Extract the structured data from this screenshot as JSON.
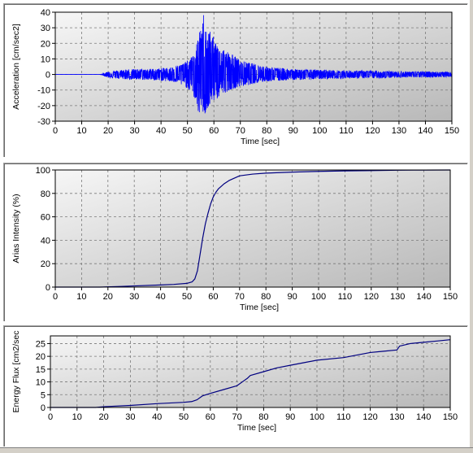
{
  "chart_data": [
    {
      "type": "line",
      "xlabel": "Time [sec]",
      "ylabel": "Acceleration [cm/sec2]",
      "xlim": [
        0,
        150
      ],
      "ylim": [
        -30,
        40
      ],
      "xticks": [
        "0",
        "10",
        "20",
        "30",
        "40",
        "50",
        "60",
        "70",
        "80",
        "90",
        "100",
        "110",
        "120",
        "130",
        "140",
        "150"
      ],
      "yticks": [
        "-30",
        "-20",
        "-10",
        "0",
        "10",
        "20",
        "30",
        "40"
      ],
      "grid": true,
      "line_color": "#0000ff",
      "series": [
        {
          "x": [
            0,
            17,
            20,
            25,
            30,
            35,
            40,
            45,
            48,
            50,
            52,
            53,
            54,
            55,
            56,
            57,
            58,
            59,
            60,
            62,
            64,
            66,
            68,
            70,
            75,
            80,
            90,
            100,
            110,
            120,
            130,
            140,
            150
          ],
          "envelope": [
            0,
            0,
            2,
            3,
            3.5,
            3.5,
            4,
            5,
            7,
            9,
            12,
            16,
            24,
            30,
            40,
            33,
            28,
            31,
            22,
            20,
            16,
            14,
            12,
            9,
            7,
            5,
            3.5,
            3,
            2.5,
            2.5,
            2,
            2,
            1.5
          ],
          "negative_envelope": [
            0,
            0,
            2,
            3,
            3.5,
            3.5,
            4,
            5,
            7,
            9,
            12,
            18,
            24,
            29,
            24,
            27,
            22,
            20,
            17,
            15,
            12,
            10,
            9,
            8,
            6,
            4.5,
            3.5,
            3,
            2.5,
            2.5,
            2,
            2,
            1.5
          ]
        }
      ]
    },
    {
      "type": "line",
      "xlabel": "Time [sec]",
      "ylabel": "Arias Intensity (%)",
      "xlim": [
        0,
        150
      ],
      "ylim": [
        0,
        100
      ],
      "xticks": [
        "0",
        "10",
        "20",
        "30",
        "40",
        "50",
        "60",
        "70",
        "80",
        "90",
        "100",
        "110",
        "120",
        "130",
        "140",
        "150"
      ],
      "yticks": [
        "0",
        "20",
        "40",
        "60",
        "80",
        "100"
      ],
      "grid": true,
      "line_color": "#000080",
      "series": [
        {
          "x": [
            0,
            17,
            25,
            30,
            40,
            45,
            50,
            52,
            53,
            54,
            55,
            56,
            57,
            58,
            59,
            60,
            61,
            62,
            64,
            66,
            68,
            70,
            75,
            80,
            90,
            100,
            110,
            120,
            130,
            140,
            150
          ],
          "y": [
            0,
            0,
            0.5,
            1,
            1.8,
            2.3,
            3.2,
            4.5,
            7,
            14,
            28,
            42,
            54,
            63,
            71,
            77,
            81,
            84,
            88,
            91,
            93,
            95,
            96.5,
            97.3,
            98.2,
            98.8,
            99.2,
            99.5,
            99.8,
            99.9,
            100
          ]
        }
      ]
    },
    {
      "type": "line",
      "xlabel": "Time [sec]",
      "ylabel": "Energy Flux [cm2/sec",
      "xlim": [
        0,
        150
      ],
      "ylim": [
        0,
        28
      ],
      "xticks": [
        "0",
        "10",
        "20",
        "30",
        "40",
        "50",
        "60",
        "70",
        "80",
        "90",
        "100",
        "110",
        "120",
        "130",
        "140",
        "150"
      ],
      "yticks": [
        "0",
        "5",
        "10",
        "15",
        "20",
        "25"
      ],
      "grid": true,
      "line_color": "#000080",
      "series": [
        {
          "x": [
            0,
            17,
            20,
            30,
            40,
            50,
            53,
            55,
            57,
            60,
            65,
            70,
            72,
            74,
            75,
            80,
            85,
            90,
            95,
            100,
            110,
            115,
            120,
            125,
            130,
            131,
            135,
            140,
            145,
            150
          ],
          "y": [
            0,
            0,
            0.3,
            0.8,
            1.5,
            2,
            2.3,
            3,
            4.5,
            5.5,
            7,
            8.5,
            10,
            11.5,
            12.5,
            14,
            15.5,
            16.5,
            17.5,
            18.5,
            19.5,
            20.5,
            21.5,
            22,
            22.5,
            24,
            25,
            25.5,
            26,
            26.5
          ]
        }
      ]
    }
  ]
}
